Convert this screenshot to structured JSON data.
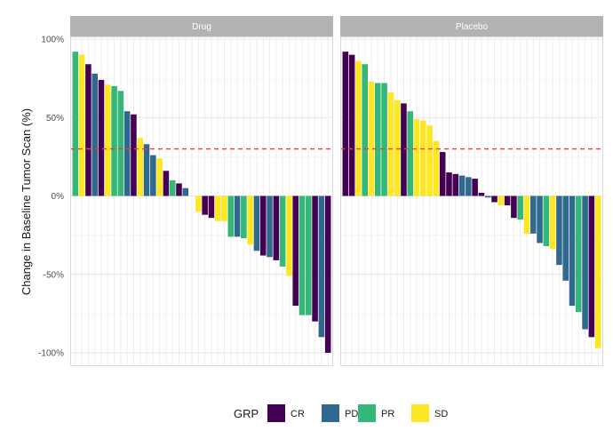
{
  "chart_data": {
    "type": "bar",
    "subtype": "waterfall-faceted",
    "ylabel": "Change in Baseline Tumor Scan (%)",
    "xlabel": "",
    "ylim": [
      -110,
      105
    ],
    "yticks": [
      100,
      50,
      0,
      -50,
      -100
    ],
    "ytick_labels": [
      "100%",
      "50%",
      "0%",
      "-50%",
      "-100%"
    ],
    "reference_line": {
      "y": 30,
      "style": "dashed",
      "color": "#ee3b3b"
    },
    "grid": true,
    "legend": {
      "title": "GRP",
      "position": "bottom",
      "entries": [
        {
          "label": "CR",
          "color": "#440154"
        },
        {
          "label": "PD",
          "color": "#31688e"
        },
        {
          "label": "PR",
          "color": "#35b779"
        },
        {
          "label": "SD",
          "color": "#fde725"
        }
      ]
    },
    "panels": [
      {
        "name": "Drug",
        "bars": [
          {
            "v": 92,
            "g": "PR"
          },
          {
            "v": 90,
            "g": "SD"
          },
          {
            "v": 84,
            "g": "CR"
          },
          {
            "v": 78,
            "g": "PD"
          },
          {
            "v": 74,
            "g": "CR"
          },
          {
            "v": 71,
            "g": "SD"
          },
          {
            "v": 70,
            "g": "PR"
          },
          {
            "v": 67,
            "g": "PR"
          },
          {
            "v": 54,
            "g": "PD"
          },
          {
            "v": 52,
            "g": "CR"
          },
          {
            "v": 37,
            "g": "SD"
          },
          {
            "v": 33,
            "g": "PD"
          },
          {
            "v": 26,
            "g": "PD"
          },
          {
            "v": 24,
            "g": "SD"
          },
          {
            "v": 16,
            "g": "CR"
          },
          {
            "v": 10,
            "g": "PR"
          },
          {
            "v": 8,
            "g": "CR"
          },
          {
            "v": 5,
            "g": "PD"
          },
          {
            "v": 0,
            "g": "SD"
          },
          {
            "v": -10,
            "g": "SD"
          },
          {
            "v": -12,
            "g": "CR"
          },
          {
            "v": -14,
            "g": "CR"
          },
          {
            "v": -16,
            "g": "SD"
          },
          {
            "v": -16,
            "g": "SD"
          },
          {
            "v": -26,
            "g": "PR"
          },
          {
            "v": -26,
            "g": "PD"
          },
          {
            "v": -27,
            "g": "PR"
          },
          {
            "v": -31,
            "g": "SD"
          },
          {
            "v": -35,
            "g": "PD"
          },
          {
            "v": -38,
            "g": "CR"
          },
          {
            "v": -39,
            "g": "PD"
          },
          {
            "v": -41,
            "g": "CR"
          },
          {
            "v": -45,
            "g": "PR"
          },
          {
            "v": -51,
            "g": "SD"
          },
          {
            "v": -70,
            "g": "CR"
          },
          {
            "v": -76,
            "g": "PR"
          },
          {
            "v": -76,
            "g": "PR"
          },
          {
            "v": -80,
            "g": "CR"
          },
          {
            "v": -90,
            "g": "PD"
          },
          {
            "v": -100,
            "g": "CR"
          }
        ]
      },
      {
        "name": "Placebo",
        "bars": [
          {
            "v": 92,
            "g": "CR"
          },
          {
            "v": 90,
            "g": "CR"
          },
          {
            "v": 86,
            "g": "SD"
          },
          {
            "v": 84,
            "g": "PR"
          },
          {
            "v": 73,
            "g": "SD"
          },
          {
            "v": 72,
            "g": "PR"
          },
          {
            "v": 72,
            "g": "PR"
          },
          {
            "v": 66,
            "g": "SD"
          },
          {
            "v": 61,
            "g": "SD"
          },
          {
            "v": 59,
            "g": "CR"
          },
          {
            "v": 54,
            "g": "PR"
          },
          {
            "v": 49,
            "g": "SD"
          },
          {
            "v": 48,
            "g": "SD"
          },
          {
            "v": 45,
            "g": "SD"
          },
          {
            "v": 35,
            "g": "SD"
          },
          {
            "v": 28,
            "g": "CR"
          },
          {
            "v": 15,
            "g": "CR"
          },
          {
            "v": 14,
            "g": "CR"
          },
          {
            "v": 13,
            "g": "PD"
          },
          {
            "v": 12,
            "g": "PD"
          },
          {
            "v": 11,
            "g": "CR"
          },
          {
            "v": 2,
            "g": "CR"
          },
          {
            "v": -1,
            "g": "PD"
          },
          {
            "v": -4,
            "g": "CR"
          },
          {
            "v": -6,
            "g": "SD"
          },
          {
            "v": -6,
            "g": "CR"
          },
          {
            "v": -14,
            "g": "CR"
          },
          {
            "v": -15,
            "g": "PR"
          },
          {
            "v": -24,
            "g": "SD"
          },
          {
            "v": -24,
            "g": "PD"
          },
          {
            "v": -30,
            "g": "PD"
          },
          {
            "v": -32,
            "g": "PR"
          },
          {
            "v": -34,
            "g": "SD"
          },
          {
            "v": -44,
            "g": "PD"
          },
          {
            "v": -54,
            "g": "PD"
          },
          {
            "v": -70,
            "g": "PD"
          },
          {
            "v": -74,
            "g": "PR"
          },
          {
            "v": -85,
            "g": "PD"
          },
          {
            "v": -90,
            "g": "CR"
          },
          {
            "v": -97,
            "g": "SD"
          }
        ]
      }
    ]
  }
}
